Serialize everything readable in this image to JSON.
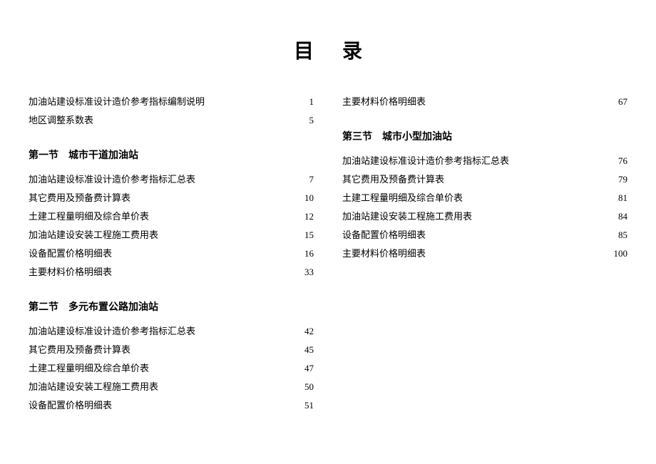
{
  "title": "目录",
  "intro_entries": [
    {
      "label": "加油站建设标准设计造价参考指标编制说明",
      "page": "1"
    },
    {
      "label": "地区调整系数表",
      "page": "5"
    }
  ],
  "sections": [
    {
      "heading": "第一节　城市干道加油站",
      "entries": [
        {
          "label": "加油站建设标准设计造价参考指标汇总表",
          "page": "7"
        },
        {
          "label": "其它费用及预备费计算表",
          "page": "10"
        },
        {
          "label": "土建工程量明细及综合单价表",
          "page": "12"
        },
        {
          "label": "加油站建设安装工程施工费用表",
          "page": "15"
        },
        {
          "label": "设备配置价格明细表",
          "page": "16"
        },
        {
          "label": "主要材料价格明细表",
          "page": "33"
        }
      ]
    },
    {
      "heading": "第二节　多元布置公路加油站",
      "entries": [
        {
          "label": "加油站建设标准设计造价参考指标汇总表",
          "page": "42"
        },
        {
          "label": "其它费用及预备费计算表",
          "page": "45"
        },
        {
          "label": "土建工程量明细及综合单价表",
          "page": "47"
        },
        {
          "label": "加油站建设安装工程施工费用表",
          "page": "50"
        },
        {
          "label": "设备配置价格明细表",
          "page": "51"
        }
      ]
    }
  ],
  "right_top_entries": [
    {
      "label": "主要材料价格明细表",
      "page": "67"
    }
  ],
  "right_sections": [
    {
      "heading": "第三节　城市小型加油站",
      "entries": [
        {
          "label": "加油站建设标准设计造价参考指标汇总表",
          "page": "76"
        },
        {
          "label": "其它费用及预备费计算表",
          "page": "79"
        },
        {
          "label": "土建工程量明细及综合单价表",
          "page": "81"
        },
        {
          "label": "加油站建设安装工程施工费用表",
          "page": "84"
        },
        {
          "label": "设备配置价格明细表",
          "page": "85"
        },
        {
          "label": "主要材料价格明细表",
          "page": "100"
        }
      ]
    }
  ]
}
